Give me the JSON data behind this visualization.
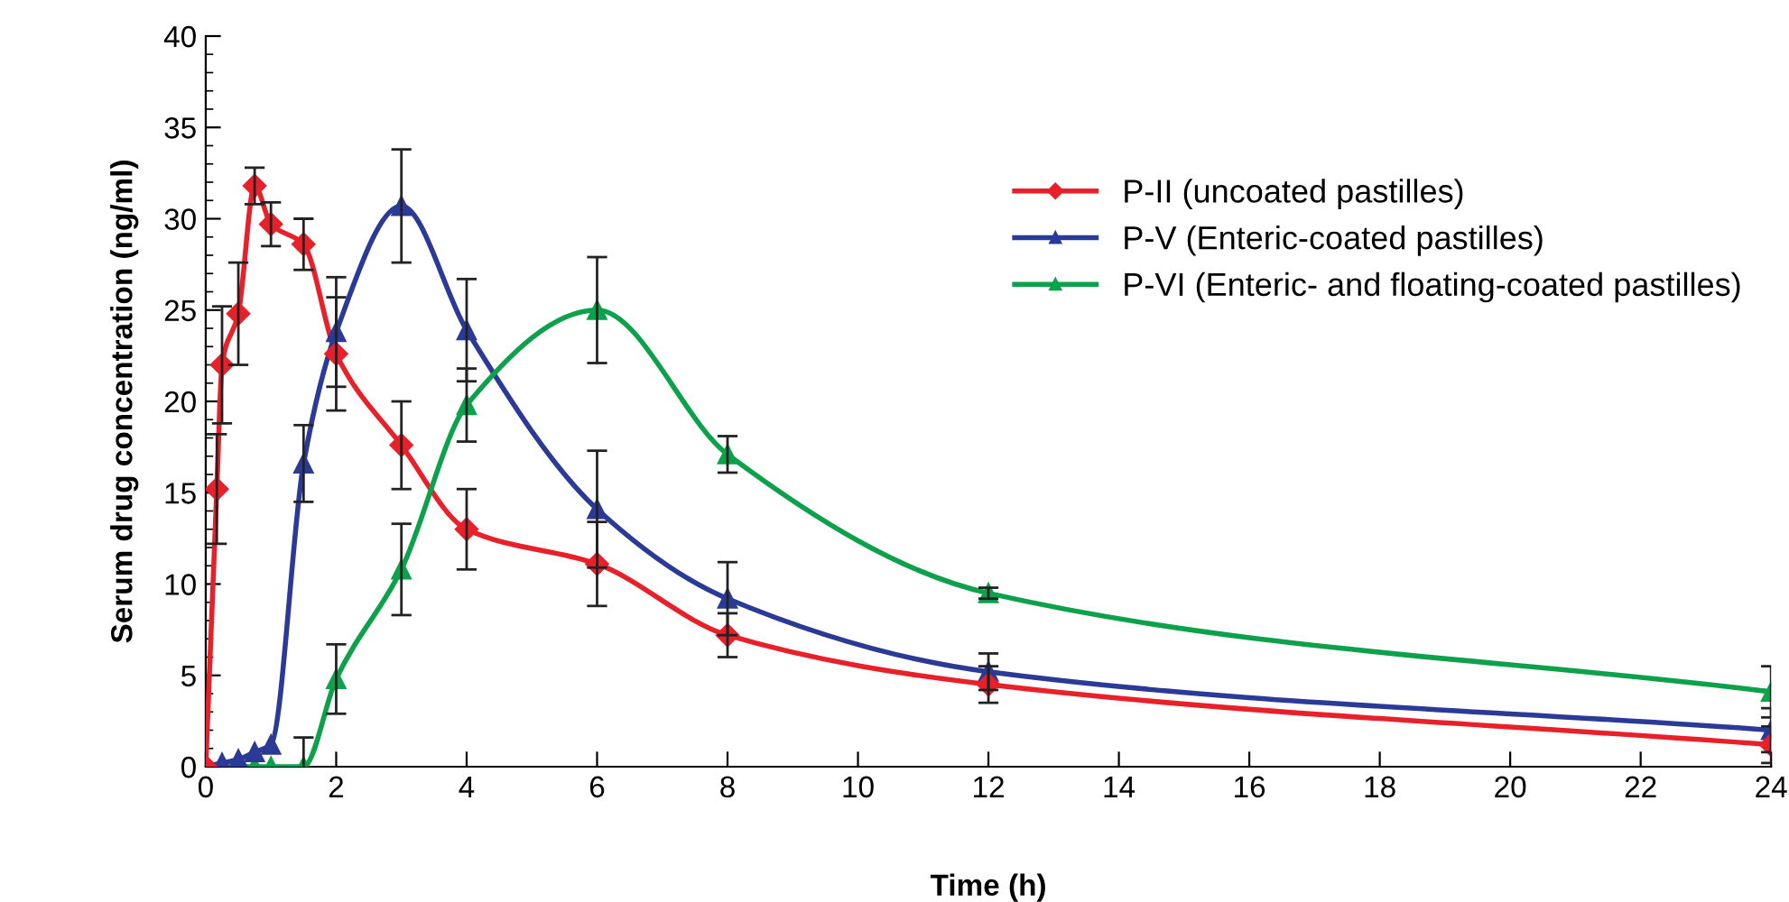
{
  "chart_data": {
    "type": "line",
    "xlabel": "Time (h)",
    "ylabel": "Serum drug concentration (ng/ml)",
    "xlim": [
      0,
      24
    ],
    "xticks": [
      0,
      2,
      4,
      6,
      8,
      10,
      12,
      14,
      16,
      18,
      20,
      22,
      24
    ],
    "ylim": [
      0,
      40
    ],
    "yticks": [
      0,
      5,
      10,
      15,
      20,
      25,
      30,
      35,
      40
    ],
    "grid": false,
    "legend": "right",
    "line_style": "solid",
    "series": [
      {
        "name": "P-II (uncoated pastilles)",
        "color": "#e8202a",
        "marker": "diamond",
        "x": [
          0,
          0.17,
          0.25,
          0.5,
          0.75,
          1,
          1.5,
          2,
          3,
          4,
          6,
          8,
          12,
          24
        ],
        "values": [
          0,
          15.2,
          22,
          24.8,
          31.8,
          29.7,
          28.6,
          22.6,
          17.6,
          13.0,
          11.1,
          7.2,
          4.5,
          1.2
        ],
        "errors": [
          null,
          3,
          3.2,
          2.8,
          1,
          1.2,
          1.4,
          3.1,
          2.4,
          2.2,
          2.3,
          1.2,
          1,
          1
        ]
      },
      {
        "name": "P-V (Enteric-coated pastilles)",
        "color": "#2b3a97",
        "marker": "triangle",
        "x": [
          0,
          0.25,
          0.5,
          0.75,
          1,
          1.5,
          2,
          3,
          4,
          6,
          8,
          12,
          24
        ],
        "values": [
          0,
          0.2,
          0.4,
          0.8,
          1.2,
          16.6,
          23.8,
          30.7,
          23.9,
          14.1,
          9.2,
          5.2,
          2.0
        ],
        "errors": [
          null,
          null,
          null,
          null,
          null,
          2.1,
          3,
          3.1,
          2.8,
          3.2,
          2,
          1,
          1.2
        ]
      },
      {
        "name": "P-VI (Enteric- and floating-coated pastilles)",
        "color": "#0ca14a",
        "marker": "triangle",
        "x": [
          0,
          0.25,
          0.5,
          0.75,
          1,
          1.5,
          2,
          3,
          4,
          6,
          8,
          12,
          24
        ],
        "values": [
          0,
          0,
          0,
          0,
          0,
          0,
          4.8,
          10.8,
          19.8,
          25.0,
          17.1,
          9.5,
          4.1
        ],
        "errors": [
          null,
          null,
          null,
          null,
          null,
          1.6,
          1.9,
          2.5,
          2,
          2.9,
          1.0,
          0.3,
          1.4
        ]
      }
    ]
  }
}
